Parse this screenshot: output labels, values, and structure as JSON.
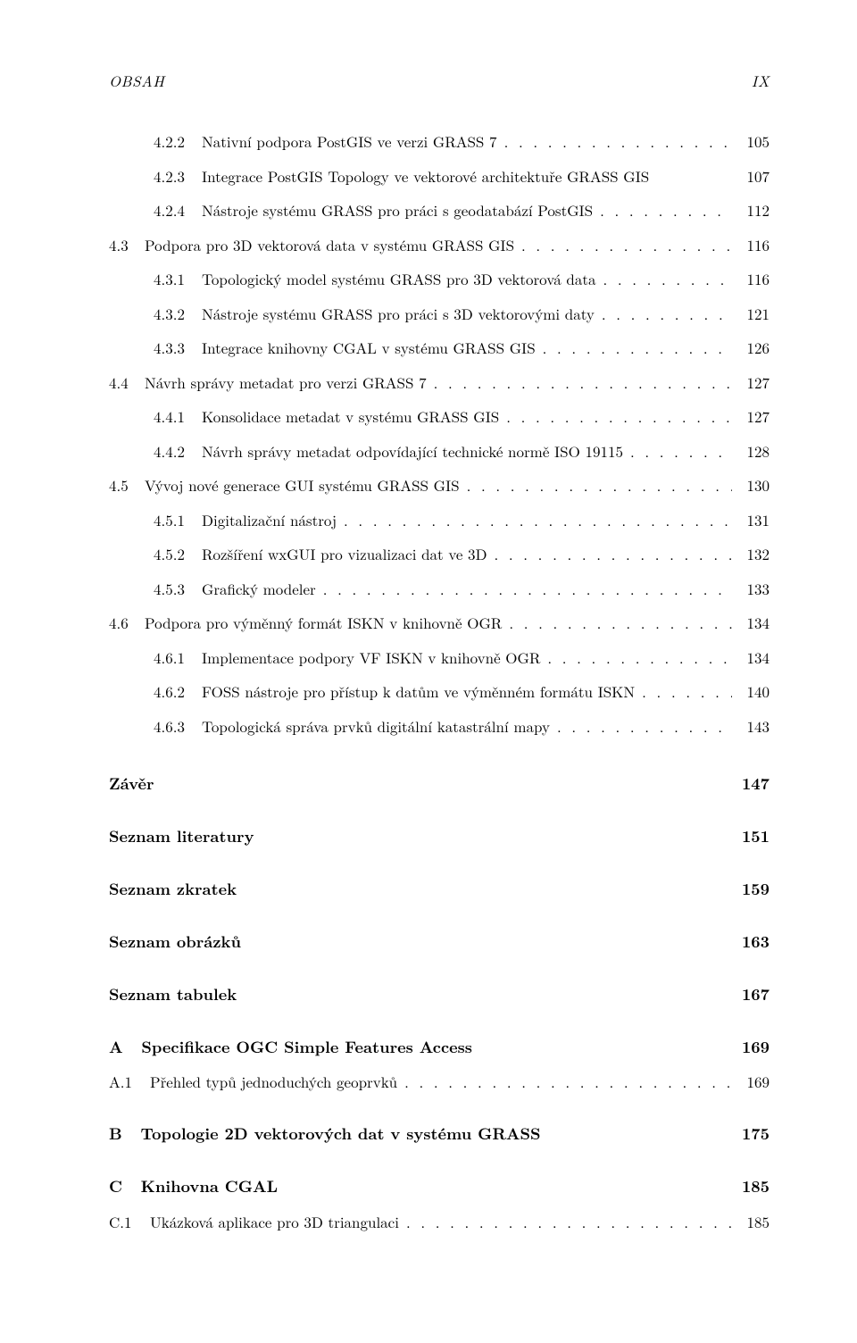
{
  "header": {
    "left": "OBSAH",
    "right": "IX"
  },
  "toc": [
    {
      "type": "sub",
      "num": "4.2.2",
      "title": "Nativní podpora PostGIS ve verzi GRASS 7",
      "page": "105"
    },
    {
      "type": "sub",
      "num": "4.2.3",
      "title": "Integrace PostGIS Topology ve vektorové architektuře GRASS GIS",
      "page": "107",
      "noleader": true
    },
    {
      "type": "sub",
      "num": "4.2.4",
      "title": "Nástroje systému GRASS pro práci s geodatabází PostGIS",
      "page": "112"
    },
    {
      "type": "sec",
      "num": "4.3",
      "title": "Podpora pro 3D vektorová data v systému GRASS GIS",
      "page": "116"
    },
    {
      "type": "sub",
      "num": "4.3.1",
      "title": "Topologický model systému GRASS pro 3D vektorová data",
      "page": "116"
    },
    {
      "type": "sub",
      "num": "4.3.2",
      "title": "Nástroje systému GRASS pro práci s 3D vektorovými daty",
      "page": "121"
    },
    {
      "type": "sub",
      "num": "4.3.3",
      "title": "Integrace knihovny CGAL v systému GRASS GIS",
      "page": "126"
    },
    {
      "type": "sec",
      "num": "4.4",
      "title": "Návrh správy metadat pro verzi GRASS 7",
      "page": "127"
    },
    {
      "type": "sub",
      "num": "4.4.1",
      "title": "Konsolidace metadat v systému GRASS GIS",
      "page": "127"
    },
    {
      "type": "sub",
      "num": "4.4.2",
      "title": "Návrh správy metadat odpovídající technické normě ISO 19115",
      "page": "128"
    },
    {
      "type": "sec",
      "num": "4.5",
      "title": "Vývoj nové generace GUI systému GRASS GIS",
      "page": "130"
    },
    {
      "type": "sub",
      "num": "4.5.1",
      "title": "Digitalizační nástroj",
      "page": "131"
    },
    {
      "type": "sub",
      "num": "4.5.2",
      "title": "Rozšíření wxGUI pro vizualizaci dat ve 3D",
      "page": "132"
    },
    {
      "type": "sub",
      "num": "4.5.3",
      "title": "Grafický modeler",
      "page": "133"
    },
    {
      "type": "sec",
      "num": "4.6",
      "title": "Podpora pro výměnný formát ISKN v knihovně OGR",
      "page": "134"
    },
    {
      "type": "sub",
      "num": "4.6.1",
      "title": "Implementace podpory VF ISKN v knihovně OGR",
      "page": "134"
    },
    {
      "type": "sub",
      "num": "4.6.2",
      "title": "FOSS nástroje pro přístup k datům ve výměnném formátu ISKN",
      "page": "140"
    },
    {
      "type": "sub",
      "num": "4.6.3",
      "title": "Topologická správa prvků digitální katastrální mapy",
      "page": "143"
    }
  ],
  "chapters": [
    {
      "label": "",
      "title": "Závěr",
      "page": "147",
      "first": true
    },
    {
      "label": "",
      "title": "Seznam literatury",
      "page": "151"
    },
    {
      "label": "",
      "title": "Seznam zkratek",
      "page": "159"
    },
    {
      "label": "",
      "title": "Seznam obrázků",
      "page": "163"
    },
    {
      "label": "",
      "title": "Seznam tabulek",
      "page": "167"
    },
    {
      "label": "A",
      "title": "Specifikace OGC Simple Features Access",
      "page": "169",
      "children": [
        {
          "num": "A.1",
          "title": "Přehled typů jednoduchých geoprvků",
          "page": "169"
        }
      ]
    },
    {
      "label": "B",
      "title": "Topologie 2D vektorových dat v systému GRASS",
      "page": "175"
    },
    {
      "label": "C",
      "title": "Knihovna CGAL",
      "page": "185",
      "children": [
        {
          "num": "C.1",
          "title": "Ukázková aplikace pro 3D triangulaci",
          "page": "185"
        }
      ]
    }
  ]
}
